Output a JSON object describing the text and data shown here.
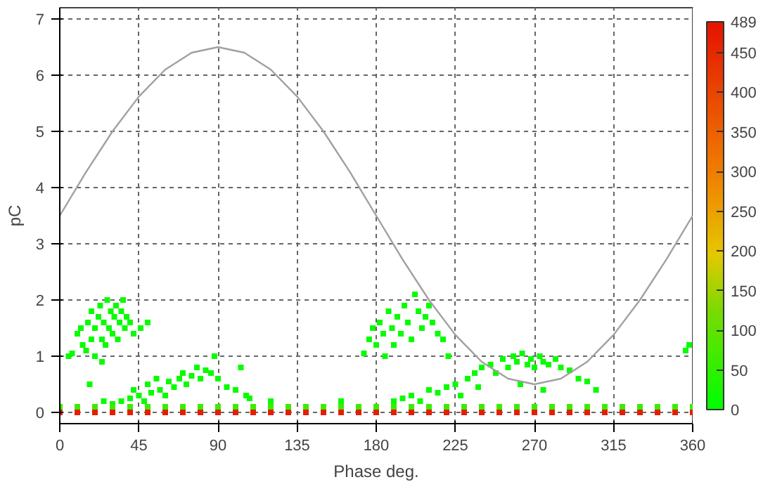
{
  "chart_data": {
    "type": "scatter",
    "xlabel": "Phase deg.",
    "ylabel": "pC",
    "xlim": [
      0,
      360
    ],
    "xticks": [
      0,
      45,
      90,
      135,
      180,
      225,
      270,
      315,
      360
    ],
    "ylim": [
      -0.2,
      7.2
    ],
    "yticks": [
      0,
      1,
      2,
      3,
      4,
      5,
      6,
      7
    ],
    "grid": true,
    "clim": [
      0,
      489
    ],
    "cticks": [
      0,
      50,
      100,
      150,
      200,
      250,
      300,
      350,
      400,
      450,
      489
    ],
    "series": [
      {
        "type": "scatter",
        "marker": "square",
        "x": [
          5,
          7,
          10,
          12,
          13,
          15,
          16,
          18,
          18,
          20,
          20,
          22,
          23,
          24,
          25,
          26,
          27,
          28,
          29,
          30,
          31,
          32,
          33,
          34,
          35,
          36,
          37,
          38,
          40,
          42,
          46,
          50,
          17,
          24,
          25,
          30,
          35,
          40,
          42,
          45,
          48,
          50,
          52,
          55,
          57,
          60,
          62,
          65,
          68,
          70,
          72,
          75,
          78,
          80,
          83,
          86,
          88,
          90,
          95,
          100,
          103,
          106,
          108,
          120,
          160,
          173,
          176,
          178,
          180,
          182,
          184,
          185,
          187,
          189,
          190,
          192,
          194,
          196,
          198,
          200,
          202,
          204,
          206,
          208,
          210,
          212,
          215,
          218,
          221,
          190,
          195,
          200,
          205,
          210,
          215,
          220,
          225,
          228,
          232,
          236,
          238,
          240,
          245,
          248,
          252,
          255,
          258,
          260,
          263,
          266,
          268,
          270,
          273,
          275,
          278,
          282,
          285,
          290,
          295,
          300,
          305,
          275,
          262,
          358,
          356
        ],
        "values": [
          1.0,
          1.05,
          1.4,
          1.5,
          1.2,
          1.1,
          1.6,
          1.3,
          1.8,
          1.5,
          1.0,
          1.7,
          1.9,
          1.3,
          1.6,
          1.2,
          2.0,
          1.5,
          1.8,
          1.4,
          1.7,
          1.9,
          1.3,
          1.6,
          1.8,
          2.0,
          1.5,
          1.7,
          1.6,
          1.4,
          1.5,
          1.6,
          0.5,
          0.9,
          0.2,
          0.15,
          0.2,
          0.25,
          0.4,
          0.3,
          0.2,
          0.5,
          0.35,
          0.6,
          0.4,
          0.3,
          0.55,
          0.45,
          0.6,
          0.7,
          0.5,
          0.65,
          0.8,
          0.6,
          0.75,
          0.7,
          1.0,
          0.6,
          0.45,
          0.4,
          0.8,
          0.3,
          0.25,
          0.2,
          0.2,
          1.05,
          1.3,
          1.5,
          1.2,
          1.6,
          1.4,
          1.0,
          1.8,
          1.5,
          1.2,
          1.7,
          1.4,
          1.9,
          1.6,
          1.3,
          2.1,
          1.8,
          1.5,
          1.7,
          1.9,
          1.6,
          1.4,
          1.3,
          1.0,
          0.2,
          0.25,
          0.3,
          0.2,
          0.4,
          0.35,
          0.45,
          0.5,
          0.3,
          0.6,
          0.7,
          0.45,
          0.8,
          0.85,
          0.7,
          0.95,
          0.8,
          1.0,
          0.9,
          1.05,
          0.85,
          0.95,
          0.8,
          1.0,
          0.9,
          0.85,
          0.95,
          0.8,
          0.75,
          0.6,
          0.55,
          0.4,
          0.4,
          0.5,
          1.2,
          1.1
        ],
        "cvalues": [
          10,
          10,
          10,
          10,
          10,
          10,
          10,
          10,
          10,
          10,
          10,
          10,
          10,
          10,
          10,
          10,
          10,
          10,
          10,
          10,
          10,
          10,
          10,
          10,
          10,
          10,
          10,
          10,
          10,
          10,
          10,
          10,
          10,
          10,
          10,
          10,
          10,
          10,
          10,
          10,
          10,
          10,
          10,
          10,
          10,
          10,
          10,
          10,
          10,
          10,
          10,
          10,
          10,
          10,
          10,
          10,
          10,
          10,
          10,
          10,
          10,
          10,
          10,
          10,
          10,
          10,
          10,
          10,
          10,
          10,
          10,
          10,
          10,
          10,
          10,
          10,
          10,
          10,
          10,
          10,
          10,
          10,
          10,
          10,
          10,
          10,
          10,
          10,
          10,
          10,
          10,
          10,
          10,
          10,
          10,
          10,
          10,
          10,
          10,
          10,
          10,
          10,
          10,
          10,
          10,
          10,
          10,
          10,
          10,
          10,
          10,
          10,
          10,
          10,
          10,
          10,
          10,
          10,
          10,
          10,
          10,
          10,
          10,
          10,
          10
        ]
      },
      {
        "type": "scatter",
        "marker": "square",
        "x": [
          0,
          10,
          20,
          30,
          40,
          50,
          60,
          70,
          80,
          90,
          100,
          110,
          120,
          130,
          140,
          150,
          160,
          170,
          180,
          190,
          200,
          210,
          220,
          230,
          240,
          250,
          260,
          270,
          280,
          290,
          300,
          310,
          320,
          330,
          340,
          350,
          360
        ],
        "values": [
          0.1,
          0.1,
          0.1,
          0.1,
          0.1,
          0.1,
          0.1,
          0.1,
          0.1,
          0.1,
          0.1,
          0.1,
          0.1,
          0.1,
          0.1,
          0.1,
          0.1,
          0.1,
          0.1,
          0.1,
          0.1,
          0.1,
          0.1,
          0.1,
          0.1,
          0.1,
          0.1,
          0.1,
          0.1,
          0.1,
          0.1,
          0.1,
          0.1,
          0.1,
          0.1,
          0.1,
          0.1
        ],
        "cvalues": [
          60,
          60,
          60,
          60,
          60,
          60,
          60,
          60,
          60,
          60,
          60,
          60,
          60,
          60,
          60,
          60,
          60,
          60,
          60,
          60,
          60,
          60,
          60,
          60,
          60,
          60,
          60,
          60,
          60,
          60,
          60,
          60,
          60,
          60,
          60,
          60,
          60
        ]
      },
      {
        "type": "scatter",
        "marker": "square",
        "x": [
          0,
          10,
          20,
          30,
          40,
          50,
          60,
          70,
          80,
          90,
          100,
          110,
          120,
          130,
          140,
          150,
          160,
          170,
          180,
          190,
          200,
          210,
          220,
          230,
          240,
          250,
          260,
          270,
          280,
          290,
          300,
          310,
          320,
          330,
          340,
          350,
          360
        ],
        "values": [
          0,
          0,
          0,
          0,
          0,
          0,
          0,
          0,
          0,
          0,
          0,
          0,
          0,
          0,
          0,
          0,
          0,
          0,
          0,
          0,
          0,
          0,
          0,
          0,
          0,
          0,
          0,
          0,
          0,
          0,
          0,
          0,
          0,
          0,
          0,
          0,
          0
        ],
        "cvalues": [
          470,
          470,
          470,
          470,
          470,
          470,
          470,
          470,
          470,
          470,
          470,
          470,
          470,
          470,
          470,
          470,
          470,
          470,
          470,
          470,
          470,
          470,
          470,
          470,
          470,
          470,
          470,
          470,
          470,
          470,
          470,
          470,
          470,
          470,
          470,
          470,
          470
        ]
      },
      {
        "type": "line",
        "color": "#a0a0a0",
        "x": [
          0,
          15,
          30,
          45,
          60,
          75,
          90,
          105,
          120,
          135,
          150,
          165,
          180,
          195,
          210,
          225,
          240,
          255,
          270,
          285,
          300,
          315,
          330,
          345,
          360
        ],
        "values": [
          3.5,
          4.28,
          5.0,
          5.62,
          6.1,
          6.4,
          6.5,
          6.4,
          6.1,
          5.62,
          5.0,
          4.28,
          3.5,
          2.72,
          2.0,
          1.38,
          0.9,
          0.6,
          0.5,
          0.6,
          0.9,
          1.38,
          2.0,
          2.72,
          3.5
        ]
      }
    ]
  }
}
